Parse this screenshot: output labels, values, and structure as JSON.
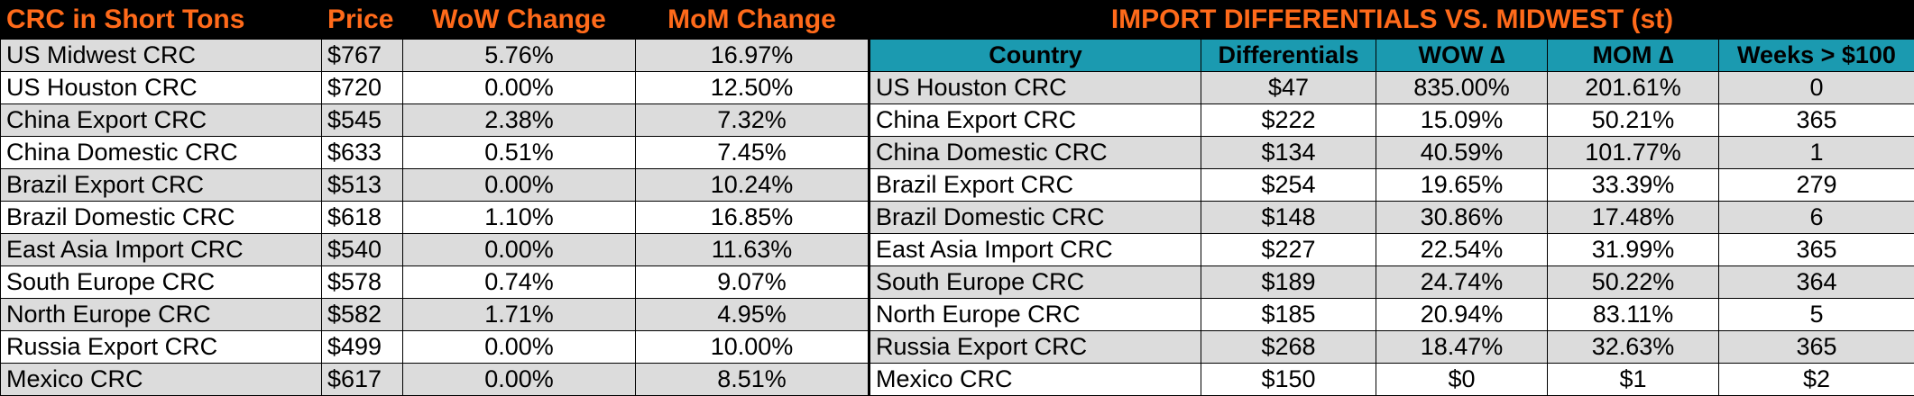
{
  "left_table": {
    "title": "CRC in Short Tons",
    "headers": {
      "price": "Price",
      "wow": "WoW Change",
      "mom": "MoM Change"
    },
    "rows": [
      {
        "name": "US Midwest CRC",
        "price": "$767",
        "wow": "5.76%",
        "mom": "16.97%"
      },
      {
        "name": "US Houston CRC",
        "price": "$720",
        "wow": "0.00%",
        "mom": "12.50%"
      },
      {
        "name": "China Export CRC",
        "price": "$545",
        "wow": "2.38%",
        "mom": "7.32%"
      },
      {
        "name": "China Domestic CRC",
        "price": "$633",
        "wow": "0.51%",
        "mom": "7.45%"
      },
      {
        "name": "Brazil Export CRC",
        "price": "$513",
        "wow": "0.00%",
        "mom": "10.24%"
      },
      {
        "name": "Brazil Domestic CRC",
        "price": "$618",
        "wow": "1.10%",
        "mom": "16.85%"
      },
      {
        "name": "East Asia Import CRC",
        "price": "$540",
        "wow": "0.00%",
        "mom": "11.63%"
      },
      {
        "name": "South Europe CRC",
        "price": "$578",
        "wow": "0.74%",
        "mom": "9.07%"
      },
      {
        "name": "North Europe CRC",
        "price": "$582",
        "wow": "1.71%",
        "mom": "4.95%"
      },
      {
        "name": "Russia Export CRC",
        "price": "$499",
        "wow": "0.00%",
        "mom": "10.00%"
      },
      {
        "name": "Mexico CRC",
        "price": "$617",
        "wow": "0.00%",
        "mom": "8.51%"
      }
    ]
  },
  "right_table": {
    "title": "IMPORT DIFFERENTIALS VS. MIDWEST (st)",
    "headers": {
      "country": "Country",
      "differentials": "Differentials",
      "wow": "WOW ∆",
      "mom": "MOM ∆",
      "weeks": "Weeks > $100"
    },
    "rows": [
      {
        "country": "US Houston CRC",
        "diff": "$47",
        "wow": "835.00%",
        "mom": "201.61%",
        "weeks": "0"
      },
      {
        "country": "China Export CRC",
        "diff": "$222",
        "wow": "15.09%",
        "mom": "50.21%",
        "weeks": "365"
      },
      {
        "country": "China Domestic CRC",
        "diff": "$134",
        "wow": "40.59%",
        "mom": "101.77%",
        "weeks": "1"
      },
      {
        "country": "Brazil Export CRC",
        "diff": "$254",
        "wow": "19.65%",
        "mom": "33.39%",
        "weeks": "279"
      },
      {
        "country": "Brazil Domestic CRC",
        "diff": "$148",
        "wow": "30.86%",
        "mom": "17.48%",
        "weeks": "6"
      },
      {
        "country": "East Asia Import CRC",
        "diff": "$227",
        "wow": "22.54%",
        "mom": "31.99%",
        "weeks": "365"
      },
      {
        "country": "South Europe CRC",
        "diff": "$189",
        "wow": "24.74%",
        "mom": "50.22%",
        "weeks": "364"
      },
      {
        "country": "North Europe CRC",
        "diff": "$185",
        "wow": "20.94%",
        "mom": "83.11%",
        "weeks": "5"
      },
      {
        "country": "Russia Export CRC",
        "diff": "$268",
        "wow": "18.47%",
        "mom": "32.63%",
        "weeks": "365"
      },
      {
        "country": "Mexico CRC",
        "diff": "$150",
        "wow": "$0",
        "mom": "$1",
        "weeks": "$2"
      }
    ]
  },
  "colors": {
    "title_bar": "#000000",
    "title_text": "#ff6a1a",
    "header_teal": "#1b9ab0",
    "row_shade": "#dcdcdc"
  }
}
